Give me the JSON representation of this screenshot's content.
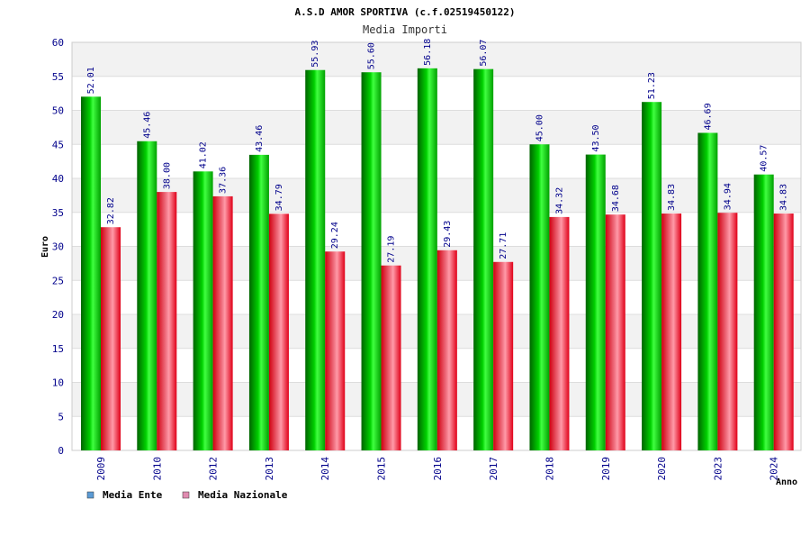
{
  "chart_data": {
    "type": "bar",
    "title": "A.S.D AMOR SPORTIVA (c.f.02519450122)",
    "subtitle": "Media Importi",
    "xlabel": "Anno",
    "ylabel": "Euro",
    "ylim": [
      0,
      60
    ],
    "yticks": [
      0,
      5,
      10,
      15,
      20,
      25,
      30,
      35,
      40,
      45,
      50,
      55,
      60
    ],
    "grid": true,
    "legend_position": "bottom-left",
    "categories": [
      "2009",
      "2010",
      "2012",
      "2013",
      "2014",
      "2015",
      "2016",
      "2017",
      "2018",
      "2019",
      "2020",
      "2023",
      "2024"
    ],
    "series": [
      {
        "name": "Media Ente",
        "legend_color": "#5b9bd5",
        "color": "#00b000",
        "values": [
          52.01,
          45.46,
          41.02,
          43.46,
          55.93,
          55.6,
          56.18,
          56.07,
          45.0,
          43.5,
          51.23,
          46.69,
          40.57
        ],
        "labels": [
          "52.01",
          "45.46",
          "41.02",
          "43.46",
          "55.93",
          "55.60",
          "56.18",
          "56.07",
          "45.00",
          "43.50",
          "51.23",
          "46.69",
          "40.57"
        ]
      },
      {
        "name": "Media Nazionale",
        "legend_color": "#e08bb0",
        "color": "#e0202a",
        "values": [
          32.82,
          38.0,
          37.36,
          34.79,
          29.24,
          27.19,
          29.43,
          27.71,
          34.32,
          34.68,
          34.83,
          34.94,
          34.83
        ],
        "labels": [
          "32.82",
          "38.00",
          "37.36",
          "34.79",
          "29.24",
          "27.19",
          "29.43",
          "27.71",
          "34.32",
          "34.68",
          "34.83",
          "34.94",
          "34.83"
        ]
      }
    ]
  }
}
